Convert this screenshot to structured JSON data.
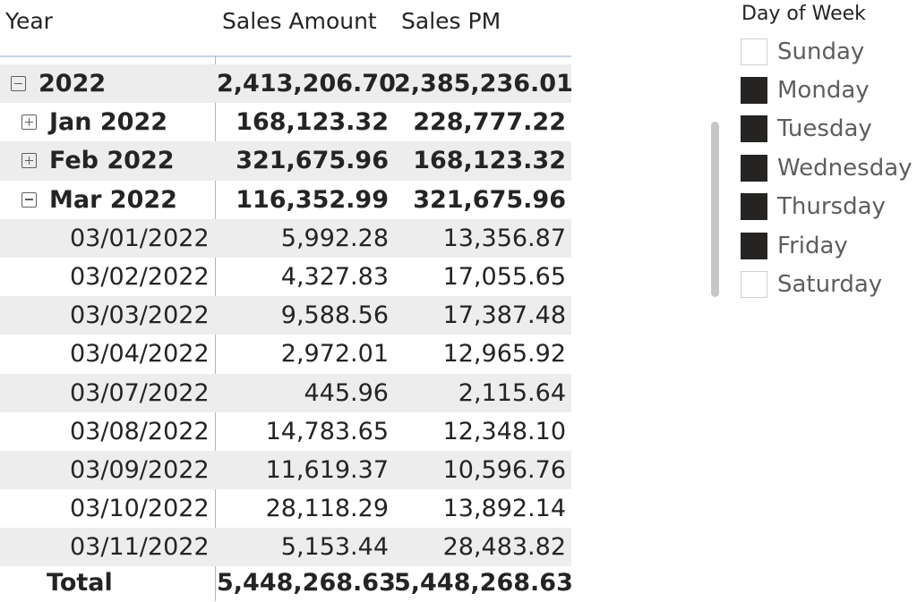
{
  "matrix": {
    "headers": {
      "year": "Year",
      "sales": "Sales Amount",
      "pm": "Sales PM"
    },
    "year_row": {
      "label": "2022",
      "sales": "2,413,206.70",
      "pm": "2,385,236.01"
    },
    "months": [
      {
        "label": "Jan 2022",
        "sales": "168,123.32",
        "pm": "228,777.22"
      },
      {
        "label": "Feb 2022",
        "sales": "321,675.96",
        "pm": "168,123.32"
      },
      {
        "label": "Mar 2022",
        "sales": "116,352.99",
        "pm": "321,675.96"
      }
    ],
    "days": [
      {
        "label": "03/01/2022",
        "sales": "5,992.28",
        "pm": "13,356.87"
      },
      {
        "label": "03/02/2022",
        "sales": "4,327.83",
        "pm": "17,055.65"
      },
      {
        "label": "03/03/2022",
        "sales": "9,588.56",
        "pm": "17,387.48"
      },
      {
        "label": "03/04/2022",
        "sales": "2,972.01",
        "pm": "12,965.92"
      },
      {
        "label": "03/07/2022",
        "sales": "445.96",
        "pm": "2,115.64"
      },
      {
        "label": "03/08/2022",
        "sales": "14,783.65",
        "pm": "12,348.10"
      },
      {
        "label": "03/09/2022",
        "sales": "11,619.37",
        "pm": "10,596.76"
      },
      {
        "label": "03/10/2022",
        "sales": "28,118.29",
        "pm": "13,892.14"
      },
      {
        "label": "03/11/2022",
        "sales": "5,153.44",
        "pm": "28,483.82"
      }
    ],
    "total": {
      "label": "Total",
      "sales": "5,448,268.63",
      "pm": "5,448,268.63"
    },
    "icons": {
      "collapse": "minus-square-icon",
      "expand": "plus-square-icon"
    }
  },
  "slicer": {
    "title": "Day of Week",
    "items": [
      {
        "label": "Sunday",
        "checked": false
      },
      {
        "label": "Monday",
        "checked": true
      },
      {
        "label": "Tuesday",
        "checked": true
      },
      {
        "label": "Wednesday",
        "checked": true
      },
      {
        "label": "Thursday",
        "checked": true
      },
      {
        "label": "Friday",
        "checked": true
      },
      {
        "label": "Saturday",
        "checked": false
      }
    ]
  },
  "colors": {
    "text": "#252423",
    "row_shade": "#ededed",
    "divider": "#9db7de",
    "checked": "#252423",
    "scrollbar": "#c8c6c4"
  }
}
